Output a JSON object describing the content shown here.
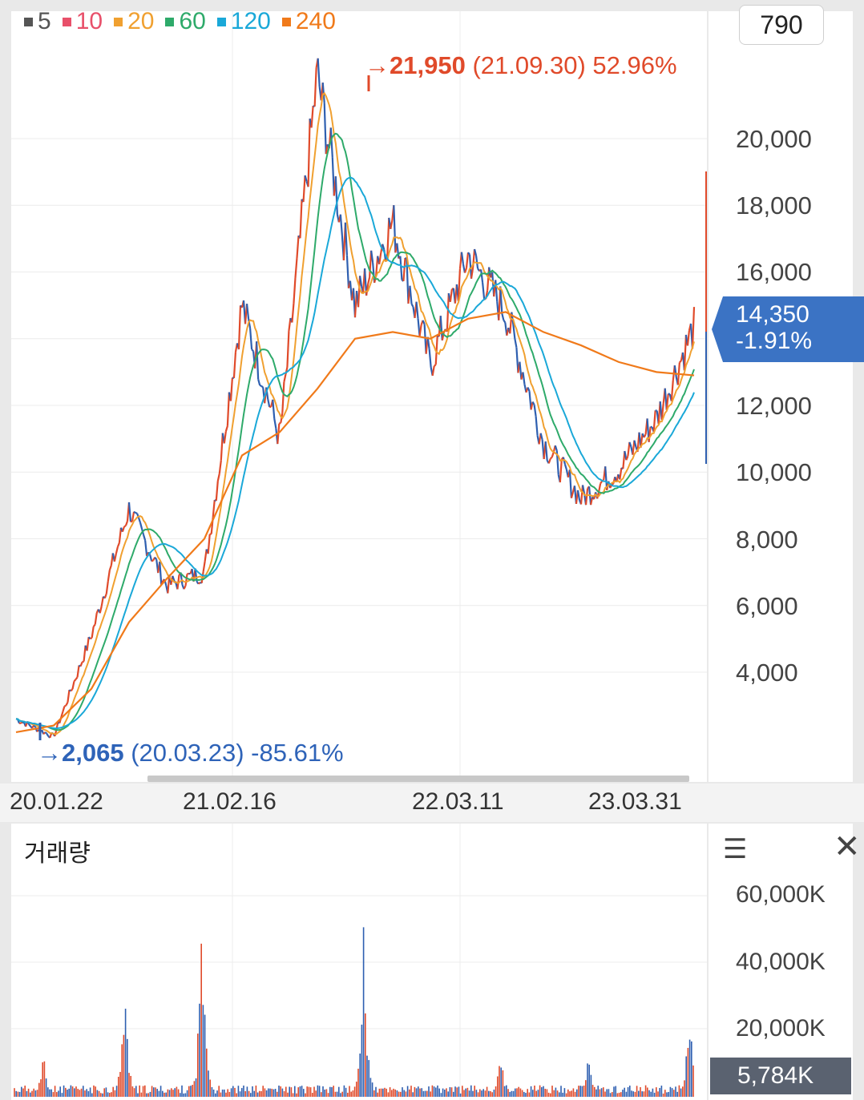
{
  "legend": [
    {
      "label": "5",
      "color": "#555555"
    },
    {
      "label": "10",
      "color": "#e8506a"
    },
    {
      "label": "20",
      "color": "#f0a030"
    },
    {
      "label": "60",
      "color": "#2eaa6a"
    },
    {
      "label": "120",
      "color": "#1aa8d8"
    },
    {
      "label": "240",
      "color": "#f07a1a"
    }
  ],
  "high_marker": {
    "arrow": "→",
    "value": "21,950",
    "date": "(21.09.30)",
    "pct": "52.96%"
  },
  "low_marker": {
    "arrow": "→",
    "value": "2,065",
    "date": "(20.03.23)",
    "pct": "-85.61%"
  },
  "top_box": "790",
  "current": {
    "price": "14,350",
    "change": "-1.91%"
  },
  "volume": {
    "title": "거래량",
    "current": "5,784K",
    "menu_icon": "hamburger-icon",
    "close_icon": "close-icon"
  },
  "chart_data": {
    "type": "line",
    "price_axis_ticks": [
      "20,000",
      "18,000",
      "16,000",
      "14,000",
      "12,000",
      "10,000",
      "8,000",
      "6,000",
      "4,000"
    ],
    "price_axis_values": [
      20000,
      18000,
      16000,
      14000,
      12000,
      10000,
      8000,
      6000,
      4000
    ],
    "ylim": [
      0,
      23500
    ],
    "date_ticks": [
      "20.01.22",
      "21.02.16",
      "22.03.11",
      "23.03.31"
    ],
    "series": [
      {
        "name": "price",
        "x": [
          "20.01",
          "20.03",
          "20.06",
          "20.09",
          "20.11",
          "21.02",
          "21.05",
          "21.07",
          "21.09",
          "21.11",
          "22.02",
          "22.05",
          "22.08",
          "22.10",
          "23.01",
          "23.03",
          "23.06",
          "23.08",
          "23.09"
        ],
        "values": [
          2600,
          2065,
          5100,
          8900,
          6600,
          7000,
          15000,
          11000,
          21950,
          15000,
          17500,
          13200,
          16500,
          14800,
          10900,
          9200,
          10100,
          11600,
          14350
        ]
      },
      {
        "name": "240",
        "values": [
          2200,
          2400,
          3500,
          5500,
          6800,
          8000,
          10500,
          11200,
          12500,
          14000,
          14200,
          14000,
          14600,
          14800,
          14200,
          13800,
          13300,
          13000,
          12900
        ]
      }
    ],
    "volume_axis_ticks": [
      "60,000K",
      "40,000K",
      "20,000K"
    ],
    "volume_axis_values": [
      60000,
      40000,
      20000
    ],
    "volume_spikes": [
      {
        "x": "20.03",
        "value": 14000
      },
      {
        "x": "20.09",
        "value": 43000
      },
      {
        "x": "21.02",
        "value": 62000
      },
      {
        "x": "21.08",
        "value": 51000
      },
      {
        "x": "22.02",
        "value": 20000
      },
      {
        "x": "22.09",
        "value": 15000
      },
      {
        "x": "23.09",
        "value": 31000
      }
    ]
  }
}
